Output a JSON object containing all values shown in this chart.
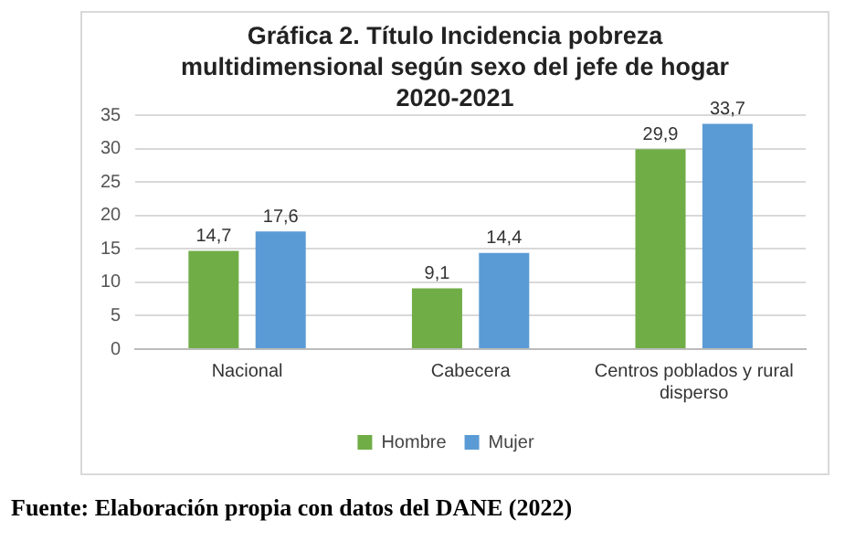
{
  "chart_data": {
    "type": "bar",
    "title": "Gráfica 2. Título Incidencia pobreza multidimensional según sexo del jefe de hogar 2020-2021",
    "categories": [
      "Nacional",
      "Cabecera",
      "Centros poblados y rural disperso"
    ],
    "series": [
      {
        "name": "Hombre",
        "color": "#70ad47",
        "values": [
          14.7,
          9.1,
          29.9
        ],
        "value_labels": [
          "14,7",
          "9,1",
          "29,9"
        ]
      },
      {
        "name": "Mujer",
        "color": "#5b9bd5",
        "values": [
          17.6,
          14.4,
          33.7
        ],
        "value_labels": [
          "17,6",
          "14,4",
          "33,7"
        ]
      }
    ],
    "ylim": [
      0,
      35
    ],
    "yticks": [
      0,
      5,
      10,
      15,
      20,
      25,
      30,
      35
    ],
    "grid": "y",
    "legend": "bottom",
    "annotations": [
      "Fuente: Elaboración propia con datos del DANE (2022)"
    ]
  }
}
